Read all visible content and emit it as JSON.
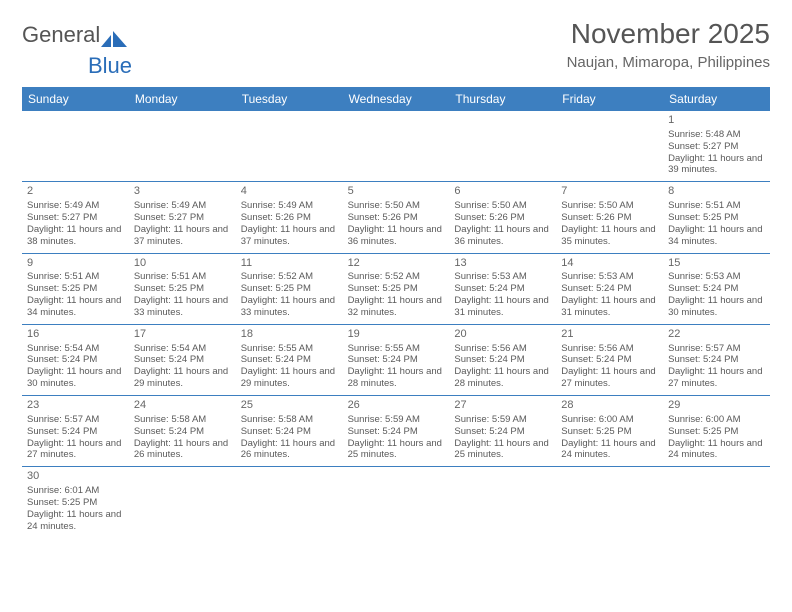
{
  "logo": {
    "text_a": "General",
    "text_b": "Blue"
  },
  "title": "November 2025",
  "location": "Naujan, Mimaropa, Philippines",
  "day_names": [
    "Sunday",
    "Monday",
    "Tuesday",
    "Wednesday",
    "Thursday",
    "Friday",
    "Saturday"
  ],
  "colors": {
    "header_bg": "#3d7fc0",
    "header_text": "#ffffff",
    "cell_border": "#3d7fc0",
    "text": "#5a5a5a",
    "title_text": "#555555"
  },
  "weeks": [
    [
      null,
      null,
      null,
      null,
      null,
      null,
      {
        "n": "1",
        "sunrise": "5:48 AM",
        "sunset": "5:27 PM",
        "daylight": "11 hours and 39 minutes."
      }
    ],
    [
      {
        "n": "2",
        "sunrise": "5:49 AM",
        "sunset": "5:27 PM",
        "daylight": "11 hours and 38 minutes."
      },
      {
        "n": "3",
        "sunrise": "5:49 AM",
        "sunset": "5:27 PM",
        "daylight": "11 hours and 37 minutes."
      },
      {
        "n": "4",
        "sunrise": "5:49 AM",
        "sunset": "5:26 PM",
        "daylight": "11 hours and 37 minutes."
      },
      {
        "n": "5",
        "sunrise": "5:50 AM",
        "sunset": "5:26 PM",
        "daylight": "11 hours and 36 minutes."
      },
      {
        "n": "6",
        "sunrise": "5:50 AM",
        "sunset": "5:26 PM",
        "daylight": "11 hours and 36 minutes."
      },
      {
        "n": "7",
        "sunrise": "5:50 AM",
        "sunset": "5:26 PM",
        "daylight": "11 hours and 35 minutes."
      },
      {
        "n": "8",
        "sunrise": "5:51 AM",
        "sunset": "5:25 PM",
        "daylight": "11 hours and 34 minutes."
      }
    ],
    [
      {
        "n": "9",
        "sunrise": "5:51 AM",
        "sunset": "5:25 PM",
        "daylight": "11 hours and 34 minutes."
      },
      {
        "n": "10",
        "sunrise": "5:51 AM",
        "sunset": "5:25 PM",
        "daylight": "11 hours and 33 minutes."
      },
      {
        "n": "11",
        "sunrise": "5:52 AM",
        "sunset": "5:25 PM",
        "daylight": "11 hours and 33 minutes."
      },
      {
        "n": "12",
        "sunrise": "5:52 AM",
        "sunset": "5:25 PM",
        "daylight": "11 hours and 32 minutes."
      },
      {
        "n": "13",
        "sunrise": "5:53 AM",
        "sunset": "5:24 PM",
        "daylight": "11 hours and 31 minutes."
      },
      {
        "n": "14",
        "sunrise": "5:53 AM",
        "sunset": "5:24 PM",
        "daylight": "11 hours and 31 minutes."
      },
      {
        "n": "15",
        "sunrise": "5:53 AM",
        "sunset": "5:24 PM",
        "daylight": "11 hours and 30 minutes."
      }
    ],
    [
      {
        "n": "16",
        "sunrise": "5:54 AM",
        "sunset": "5:24 PM",
        "daylight": "11 hours and 30 minutes."
      },
      {
        "n": "17",
        "sunrise": "5:54 AM",
        "sunset": "5:24 PM",
        "daylight": "11 hours and 29 minutes."
      },
      {
        "n": "18",
        "sunrise": "5:55 AM",
        "sunset": "5:24 PM",
        "daylight": "11 hours and 29 minutes."
      },
      {
        "n": "19",
        "sunrise": "5:55 AM",
        "sunset": "5:24 PM",
        "daylight": "11 hours and 28 minutes."
      },
      {
        "n": "20",
        "sunrise": "5:56 AM",
        "sunset": "5:24 PM",
        "daylight": "11 hours and 28 minutes."
      },
      {
        "n": "21",
        "sunrise": "5:56 AM",
        "sunset": "5:24 PM",
        "daylight": "11 hours and 27 minutes."
      },
      {
        "n": "22",
        "sunrise": "5:57 AM",
        "sunset": "5:24 PM",
        "daylight": "11 hours and 27 minutes."
      }
    ],
    [
      {
        "n": "23",
        "sunrise": "5:57 AM",
        "sunset": "5:24 PM",
        "daylight": "11 hours and 27 minutes."
      },
      {
        "n": "24",
        "sunrise": "5:58 AM",
        "sunset": "5:24 PM",
        "daylight": "11 hours and 26 minutes."
      },
      {
        "n": "25",
        "sunrise": "5:58 AM",
        "sunset": "5:24 PM",
        "daylight": "11 hours and 26 minutes."
      },
      {
        "n": "26",
        "sunrise": "5:59 AM",
        "sunset": "5:24 PM",
        "daylight": "11 hours and 25 minutes."
      },
      {
        "n": "27",
        "sunrise": "5:59 AM",
        "sunset": "5:24 PM",
        "daylight": "11 hours and 25 minutes."
      },
      {
        "n": "28",
        "sunrise": "6:00 AM",
        "sunset": "5:25 PM",
        "daylight": "11 hours and 24 minutes."
      },
      {
        "n": "29",
        "sunrise": "6:00 AM",
        "sunset": "5:25 PM",
        "daylight": "11 hours and 24 minutes."
      }
    ],
    [
      {
        "n": "30",
        "sunrise": "6:01 AM",
        "sunset": "5:25 PM",
        "daylight": "11 hours and 24 minutes."
      },
      null,
      null,
      null,
      null,
      null,
      null
    ]
  ],
  "labels": {
    "sunrise": "Sunrise:",
    "sunset": "Sunset:",
    "daylight": "Daylight:"
  }
}
